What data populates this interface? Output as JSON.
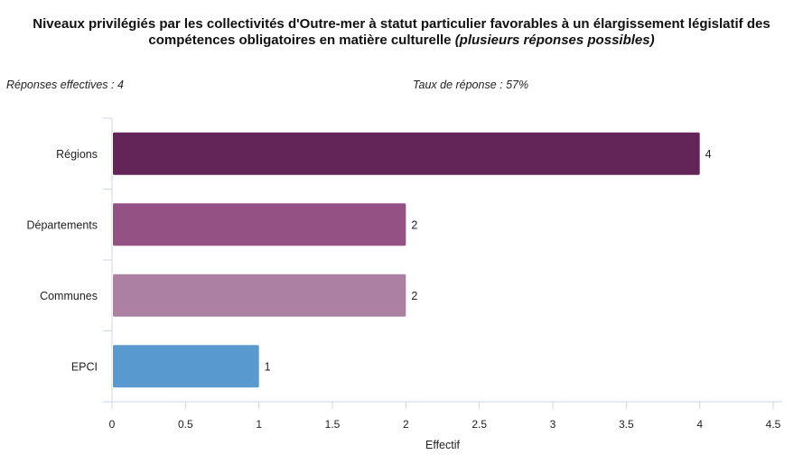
{
  "title": {
    "line1": "Niveaux privilégiés par les collectivités d'Outre-mer à statut particulier favorables à un élargissement législatif des",
    "line2_main": "compétences obligatoires en matière culturelle ",
    "line2_italic": "(plusieurs réponses possibles)"
  },
  "stats": {
    "responses": "Réponses effectives : 4",
    "rate": "Taux de réponse : 57%"
  },
  "chart_data": {
    "type": "bar",
    "orientation": "horizontal",
    "categories": [
      "Régions",
      "Départements",
      "Communes",
      "EPCI"
    ],
    "values": [
      4,
      2,
      2,
      1
    ],
    "colors": [
      "#632457",
      "#935184",
      "#ab80a3",
      "#5899d0"
    ],
    "xlabel": "Effectif",
    "xlim": [
      0,
      4.5
    ],
    "xticks": [
      "0",
      "0.5",
      "1",
      "1.5",
      "2",
      "2.5",
      "3",
      "3.5",
      "4",
      "4.5"
    ],
    "grid": false
  }
}
